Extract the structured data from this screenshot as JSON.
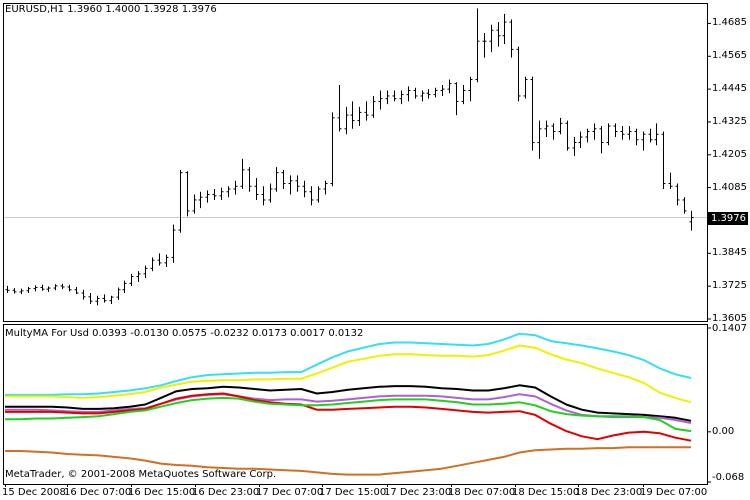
{
  "window": {
    "main_header": "EURUSD,H1  1.3960 1.4000 1.3928 1.3976",
    "indicator_header": "MultyMA For Usd 0.0393 -0.0130 0.0575 -0.0232 0.0173 0.0017 0.0132",
    "copyright": "MetaTrader, © 2001-2008 MetaQuotes Software Corp.",
    "current_price": "1.3976",
    "price_ticks": [
      "1.4685",
      "1.4565",
      "1.4445",
      "1.4325",
      "1.4205",
      "1.4085",
      "1.3845",
      "1.3725",
      "1.3605"
    ],
    "indicator_ticks": [
      "0.1407",
      "0.00",
      "-0.068"
    ],
    "time_ticks": [
      "15 Dec 2008",
      "16 Dec 07:00",
      "16 Dec 15:00",
      "16 Dec 23:00",
      "17 Dec 07:00",
      "17 Dec 15:00",
      "17 Dec 23:00",
      "18 Dec 07:00",
      "18 Dec 15:00",
      "18 Dec 23:00",
      "19 Dec 07:00"
    ]
  },
  "colors": {
    "bars": "#000000",
    "grid": "#c8c8c8",
    "cyan": "#33e0f0",
    "yellow": "#f0f000",
    "black": "#000000",
    "violet": "#b060d0",
    "red": "#e00000",
    "green": "#20d020",
    "orange": "#d07020"
  },
  "chart_data": [
    {
      "type": "ohlc",
      "title": "EURUSD,H1",
      "ylim": [
        1.3605,
        1.4745
      ],
      "bars": [
        [
          1.3712,
          1.3726,
          1.37,
          1.371
        ],
        [
          1.371,
          1.3718,
          1.3698,
          1.3704
        ],
        [
          1.3704,
          1.3716,
          1.3696,
          1.3708
        ],
        [
          1.3708,
          1.3722,
          1.37,
          1.3716
        ],
        [
          1.3716,
          1.3728,
          1.3706,
          1.372
        ],
        [
          1.372,
          1.373,
          1.3708,
          1.3714
        ],
        [
          1.3714,
          1.3724,
          1.3704,
          1.3718
        ],
        [
          1.3718,
          1.3732,
          1.371,
          1.3726
        ],
        [
          1.3726,
          1.3734,
          1.3714,
          1.3722
        ],
        [
          1.3722,
          1.373,
          1.3706,
          1.3712
        ],
        [
          1.3712,
          1.3722,
          1.3696,
          1.37
        ],
        [
          1.37,
          1.3712,
          1.3676,
          1.3686
        ],
        [
          1.3686,
          1.37,
          1.366,
          1.367
        ],
        [
          1.367,
          1.369,
          1.3655,
          1.368
        ],
        [
          1.368,
          1.3695,
          1.3665,
          1.3672
        ],
        [
          1.3672,
          1.369,
          1.366,
          1.3685
        ],
        [
          1.3685,
          1.372,
          1.3675,
          1.3712
        ],
        [
          1.3712,
          1.3745,
          1.37,
          1.3735
        ],
        [
          1.3735,
          1.377,
          1.3725,
          1.376
        ],
        [
          1.376,
          1.378,
          1.374,
          1.377
        ],
        [
          1.377,
          1.38,
          1.3755,
          1.379
        ],
        [
          1.379,
          1.383,
          1.378,
          1.382
        ],
        [
          1.382,
          1.3845,
          1.38,
          1.381
        ],
        [
          1.381,
          1.384,
          1.3795,
          1.383
        ],
        [
          1.383,
          1.395,
          1.381,
          1.393
        ],
        [
          1.393,
          1.415,
          1.392,
          1.414
        ],
        [
          1.414,
          1.4145,
          1.398,
          1.4
        ],
        [
          1.4,
          1.406,
          1.399,
          1.404
        ],
        [
          1.404,
          1.407,
          1.401,
          1.405
        ],
        [
          1.405,
          1.4075,
          1.403,
          1.406
        ],
        [
          1.406,
          1.408,
          1.404,
          1.4055
        ],
        [
          1.4055,
          1.4085,
          1.404,
          1.407
        ],
        [
          1.407,
          1.409,
          1.405,
          1.408
        ],
        [
          1.408,
          1.411,
          1.406,
          1.409
        ],
        [
          1.409,
          1.419,
          1.408,
          1.415
        ],
        [
          1.415,
          1.416,
          1.407,
          1.409
        ],
        [
          1.409,
          1.412,
          1.404,
          1.406
        ],
        [
          1.406,
          1.409,
          1.402,
          1.404
        ],
        [
          1.404,
          1.41,
          1.403,
          1.408
        ],
        [
          1.408,
          1.416,
          1.407,
          1.414
        ],
        [
          1.414,
          1.415,
          1.408,
          1.41
        ],
        [
          1.41,
          1.413,
          1.406,
          1.411
        ],
        [
          1.411,
          1.413,
          1.407,
          1.409
        ],
        [
          1.409,
          1.411,
          1.405,
          1.407
        ],
        [
          1.407,
          1.409,
          1.402,
          1.404
        ],
        [
          1.404,
          1.409,
          1.403,
          1.408
        ],
        [
          1.408,
          1.411,
          1.406,
          1.41
        ],
        [
          1.41,
          1.436,
          1.409,
          1.434
        ],
        [
          1.434,
          1.446,
          1.429,
          1.43
        ],
        [
          1.43,
          1.438,
          1.428,
          1.435
        ],
        [
          1.435,
          1.44,
          1.43,
          1.433
        ],
        [
          1.433,
          1.438,
          1.431,
          1.436
        ],
        [
          1.436,
          1.44,
          1.433,
          1.435
        ],
        [
          1.435,
          1.442,
          1.434,
          1.44
        ],
        [
          1.44,
          1.444,
          1.437,
          1.441
        ],
        [
          1.441,
          1.444,
          1.439,
          1.442
        ],
        [
          1.442,
          1.444,
          1.44,
          1.441
        ],
        [
          1.441,
          1.444,
          1.439,
          1.4425
        ],
        [
          1.4425,
          1.4455,
          1.44,
          1.444
        ],
        [
          1.444,
          1.445,
          1.441,
          1.442
        ],
        [
          1.442,
          1.444,
          1.44,
          1.443
        ],
        [
          1.443,
          1.4445,
          1.441,
          1.4425
        ],
        [
          1.4425,
          1.445,
          1.4415,
          1.444
        ],
        [
          1.444,
          1.446,
          1.442,
          1.4445
        ],
        [
          1.4445,
          1.448,
          1.443,
          1.4465
        ],
        [
          1.4465,
          1.447,
          1.435,
          1.44
        ],
        [
          1.44,
          1.446,
          1.439,
          1.444
        ],
        [
          1.444,
          1.449,
          1.44,
          1.448
        ],
        [
          1.448,
          1.474,
          1.447,
          1.462
        ],
        [
          1.462,
          1.465,
          1.456,
          1.462
        ],
        [
          1.462,
          1.468,
          1.458,
          1.466
        ],
        [
          1.466,
          1.469,
          1.46,
          1.464
        ],
        [
          1.464,
          1.472,
          1.461,
          1.469
        ],
        [
          1.469,
          1.47,
          1.456,
          1.459
        ],
        [
          1.459,
          1.46,
          1.44,
          1.442
        ],
        [
          1.442,
          1.449,
          1.441,
          1.448
        ],
        [
          1.448,
          1.449,
          1.422,
          1.425
        ],
        [
          1.425,
          1.433,
          1.419,
          1.43
        ],
        [
          1.43,
          1.433,
          1.427,
          1.431
        ],
        [
          1.431,
          1.432,
          1.426,
          1.429
        ],
        [
          1.429,
          1.434,
          1.428,
          1.432
        ],
        [
          1.432,
          1.433,
          1.422,
          1.423
        ],
        [
          1.423,
          1.427,
          1.42,
          1.425
        ],
        [
          1.425,
          1.429,
          1.423,
          1.427
        ],
        [
          1.427,
          1.43,
          1.425,
          1.429
        ],
        [
          1.429,
          1.432,
          1.426,
          1.43
        ],
        [
          1.43,
          1.431,
          1.421,
          1.425
        ],
        [
          1.425,
          1.432,
          1.424,
          1.431
        ],
        [
          1.431,
          1.432,
          1.427,
          1.429
        ],
        [
          1.429,
          1.431,
          1.426,
          1.428
        ],
        [
          1.428,
          1.431,
          1.426,
          1.429
        ],
        [
          1.429,
          1.43,
          1.424,
          1.426
        ],
        [
          1.426,
          1.429,
          1.422,
          1.428
        ],
        [
          1.428,
          1.43,
          1.425,
          1.426
        ],
        [
          1.426,
          1.432,
          1.424,
          1.428
        ],
        [
          1.428,
          1.429,
          1.408,
          1.41
        ],
        [
          1.41,
          1.414,
          1.408,
          1.409
        ],
        [
          1.409,
          1.41,
          1.402,
          1.404
        ],
        [
          1.404,
          1.405,
          1.399,
          1.4
        ],
        [
          1.396,
          1.4,
          1.3928,
          1.3976
        ]
      ]
    },
    {
      "type": "line",
      "title": "MultyMA For Usd",
      "ylim": [
        -0.068,
        0.1407
      ],
      "series": [
        {
          "color": "cyan",
          "values": [
            0.05,
            0.05,
            0.05,
            0.05,
            0.051,
            0.051,
            0.052,
            0.054,
            0.056,
            0.059,
            0.063,
            0.069,
            0.074,
            0.077,
            0.078,
            0.079,
            0.08,
            0.08,
            0.081,
            0.081,
            0.091,
            0.101,
            0.109,
            0.114,
            0.119,
            0.121,
            0.121,
            0.12,
            0.119,
            0.118,
            0.117,
            0.119,
            0.125,
            0.133,
            0.131,
            0.123,
            0.12,
            0.117,
            0.113,
            0.109,
            0.104,
            0.097,
            0.086,
            0.078,
            0.073
          ]
        },
        {
          "color": "yellow",
          "values": [
            0.048,
            0.048,
            0.048,
            0.048,
            0.047,
            0.046,
            0.047,
            0.049,
            0.051,
            0.054,
            0.06,
            0.064,
            0.068,
            0.069,
            0.07,
            0.07,
            0.071,
            0.071,
            0.072,
            0.072,
            0.079,
            0.087,
            0.095,
            0.099,
            0.103,
            0.105,
            0.105,
            0.104,
            0.103,
            0.103,
            0.102,
            0.104,
            0.11,
            0.117,
            0.114,
            0.105,
            0.098,
            0.093,
            0.086,
            0.08,
            0.074,
            0.066,
            0.053,
            0.046,
            0.04
          ]
        },
        {
          "color": "black",
          "values": [
            0.034,
            0.034,
            0.034,
            0.034,
            0.033,
            0.031,
            0.031,
            0.032,
            0.034,
            0.037,
            0.046,
            0.055,
            0.058,
            0.059,
            0.061,
            0.06,
            0.058,
            0.056,
            0.057,
            0.058,
            0.052,
            0.054,
            0.057,
            0.059,
            0.061,
            0.062,
            0.062,
            0.061,
            0.059,
            0.058,
            0.056,
            0.056,
            0.059,
            0.063,
            0.06,
            0.048,
            0.037,
            0.03,
            0.026,
            0.025,
            0.024,
            0.023,
            0.021,
            0.019,
            0.015
          ]
        },
        {
          "color": "violet",
          "values": [
            0.03,
            0.03,
            0.03,
            0.029,
            0.028,
            0.027,
            0.027,
            0.029,
            0.031,
            0.032,
            0.038,
            0.044,
            0.048,
            0.05,
            0.051,
            0.048,
            0.045,
            0.043,
            0.044,
            0.044,
            0.041,
            0.042,
            0.044,
            0.046,
            0.048,
            0.049,
            0.049,
            0.049,
            0.048,
            0.046,
            0.044,
            0.044,
            0.047,
            0.051,
            0.048,
            0.038,
            0.029,
            0.023,
            0.021,
            0.02,
            0.02,
            0.02,
            0.019,
            0.016,
            0.012
          ]
        },
        {
          "color": "red",
          "values": [
            0.027,
            0.027,
            0.027,
            0.027,
            0.026,
            0.025,
            0.025,
            0.027,
            0.029,
            0.031,
            0.038,
            0.045,
            0.049,
            0.051,
            0.052,
            0.048,
            0.043,
            0.04,
            0.038,
            0.037,
            0.03,
            0.03,
            0.031,
            0.032,
            0.033,
            0.034,
            0.034,
            0.033,
            0.031,
            0.029,
            0.027,
            0.026,
            0.027,
            0.028,
            0.023,
            0.011,
            0.001,
            -0.006,
            -0.01,
            -0.005,
            -0.001,
            0.0,
            -0.002,
            -0.008,
            -0.012
          ]
        },
        {
          "color": "green",
          "values": [
            0.017,
            0.017,
            0.018,
            0.018,
            0.019,
            0.02,
            0.021,
            0.024,
            0.027,
            0.029,
            0.034,
            0.039,
            0.043,
            0.045,
            0.046,
            0.045,
            0.041,
            0.038,
            0.037,
            0.036,
            0.036,
            0.037,
            0.039,
            0.041,
            0.043,
            0.044,
            0.044,
            0.044,
            0.042,
            0.04,
            0.037,
            0.037,
            0.038,
            0.04,
            0.036,
            0.028,
            0.024,
            0.022,
            0.021,
            0.021,
            0.021,
            0.02,
            0.016,
            0.004,
            0.001
          ]
        },
        {
          "color": "orange",
          "values": [
            -0.026,
            -0.026,
            -0.027,
            -0.028,
            -0.03,
            -0.031,
            -0.032,
            -0.034,
            -0.036,
            -0.039,
            -0.043,
            -0.045,
            -0.046,
            -0.048,
            -0.049,
            -0.05,
            -0.05,
            -0.051,
            -0.052,
            -0.053,
            -0.055,
            -0.057,
            -0.058,
            -0.058,
            -0.058,
            -0.056,
            -0.054,
            -0.052,
            -0.05,
            -0.046,
            -0.042,
            -0.038,
            -0.034,
            -0.028,
            -0.025,
            -0.024,
            -0.023,
            -0.023,
            -0.022,
            -0.022,
            -0.021,
            -0.021,
            -0.021,
            -0.021,
            -0.021
          ]
        }
      ]
    }
  ]
}
